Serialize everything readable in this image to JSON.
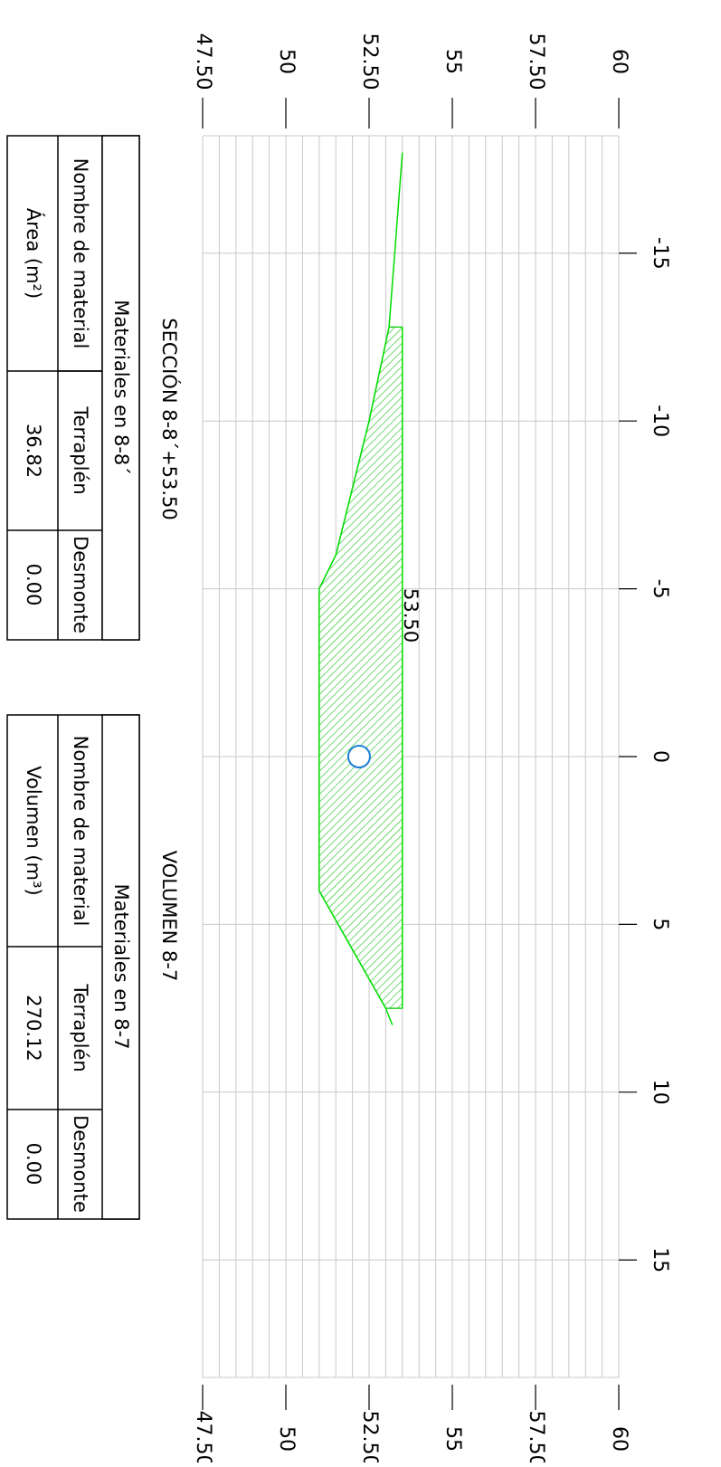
{
  "section_title": "SECCIÓN 8-8´+53.50",
  "volume_title": "VOLUMEN 8-7",
  "centerline_label": "53.50",
  "colors": {
    "grid": "#c8c8c8",
    "ground_line": "#00dd00",
    "fill": "#00cc00",
    "marker": "#1e7fd8",
    "terraplen": "#22dd22",
    "desmonte": "#ff8c00"
  },
  "area_table": {
    "header": "Materiales en 8-8´",
    "row_label_name": "Nombre de material",
    "row_label_value": "Área (m²)",
    "materials": [
      {
        "name": "Terraplén",
        "value": "36.82"
      },
      {
        "name": "Desmonte",
        "value": "0.00"
      }
    ]
  },
  "volume_table": {
    "header": "Materiales en 8-7",
    "row_label_name": "Nombre de material",
    "row_label_value": "Volumen (m³)",
    "materials": [
      {
        "name": "Terraplén",
        "value": "270.12"
      },
      {
        "name": "Desmonte",
        "value": "0.00"
      }
    ]
  },
  "chart_data": {
    "type": "area",
    "title": "SECCIÓN 8-8´+53.50",
    "x_ticks": [
      "-15",
      "-10",
      "-5",
      "0",
      "5",
      "10",
      "15"
    ],
    "x_tick_values": [
      -15,
      -10,
      -5,
      0,
      5,
      10,
      15
    ],
    "xlim": [
      -18.5,
      18.5
    ],
    "y_ticks": [
      "47.50",
      "50",
      "52.50",
      "55",
      "57.50",
      "60"
    ],
    "y_tick_values": [
      47.5,
      50,
      52.5,
      55,
      57.5,
      60
    ],
    "ylim": [
      47.5,
      60
    ],
    "grid": true,
    "series": [
      {
        "x": [
          -18.0,
          -12.8,
          -10.0,
          -6.0,
          -5.0,
          4.0,
          7.5,
          8.0
        ],
        "y": [
          53.5,
          53.1,
          52.5,
          51.5,
          51.0,
          51.0,
          53.0,
          53.2
        ]
      },
      {
        "x": [
          -12.8,
          7.5
        ],
        "y": [
          53.5,
          53.5
        ]
      }
    ],
    "fill_polygon": {
      "x": [
        -12.8,
        -10.0,
        -6.0,
        -5.0,
        4.0,
        7.5,
        7.5,
        -12.8
      ],
      "y": [
        53.1,
        52.5,
        51.5,
        51.0,
        51.0,
        53.0,
        53.5,
        53.5
      ]
    },
    "marker": {
      "x": 0,
      "y": 52.2
    }
  }
}
